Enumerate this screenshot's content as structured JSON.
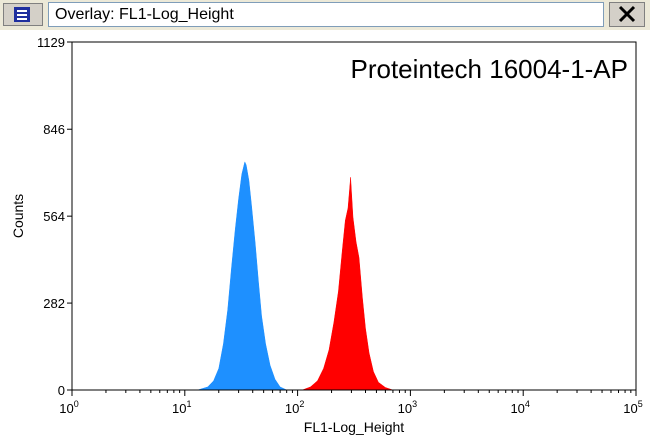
{
  "window": {
    "title": "Overlay: FL1-Log_Height",
    "icon": "overlay-window-icon",
    "close_icon": "close-icon"
  },
  "chart_data": {
    "type": "area",
    "annotation": "Proteintech 16004-1-AP",
    "xlabel": "FL1-Log_Height",
    "ylabel": "Counts",
    "xscale": "log",
    "xlim": [
      1,
      100000
    ],
    "ylim": [
      0,
      1129
    ],
    "x_ticks": [
      {
        "base": "10",
        "exp": "0",
        "value": 1
      },
      {
        "base": "10",
        "exp": "1",
        "value": 10
      },
      {
        "base": "10",
        "exp": "2",
        "value": 100
      },
      {
        "base": "10",
        "exp": "3",
        "value": 1000
      },
      {
        "base": "10",
        "exp": "4",
        "value": 10000
      },
      {
        "base": "10",
        "exp": "5",
        "value": 100000
      }
    ],
    "y_ticks": [
      "0",
      "282",
      "564",
      "846",
      "1129"
    ],
    "grid": false,
    "series": [
      {
        "color": "#1e90ff",
        "points": [
          [
            13,
            0
          ],
          [
            16,
            10
          ],
          [
            18,
            30
          ],
          [
            20,
            70
          ],
          [
            22,
            150
          ],
          [
            24,
            260
          ],
          [
            26,
            400
          ],
          [
            28,
            520
          ],
          [
            30,
            620
          ],
          [
            32,
            700
          ],
          [
            34,
            740
          ],
          [
            35,
            730
          ],
          [
            37,
            680
          ],
          [
            39,
            600
          ],
          [
            42,
            480
          ],
          [
            45,
            350
          ],
          [
            48,
            240
          ],
          [
            52,
            150
          ],
          [
            57,
            80
          ],
          [
            63,
            35
          ],
          [
            70,
            10
          ],
          [
            80,
            0
          ]
        ]
      },
      {
        "color": "#ff0000",
        "points": [
          [
            110,
            0
          ],
          [
            130,
            10
          ],
          [
            150,
            30
          ],
          [
            170,
            70
          ],
          [
            190,
            130
          ],
          [
            210,
            220
          ],
          [
            230,
            320
          ],
          [
            250,
            460
          ],
          [
            265,
            550
          ],
          [
            280,
            590
          ],
          [
            295,
            690
          ],
          [
            310,
            560
          ],
          [
            330,
            480
          ],
          [
            350,
            430
          ],
          [
            375,
            300
          ],
          [
            400,
            200
          ],
          [
            430,
            120
          ],
          [
            470,
            60
          ],
          [
            520,
            25
          ],
          [
            600,
            8
          ],
          [
            700,
            0
          ]
        ]
      }
    ]
  }
}
